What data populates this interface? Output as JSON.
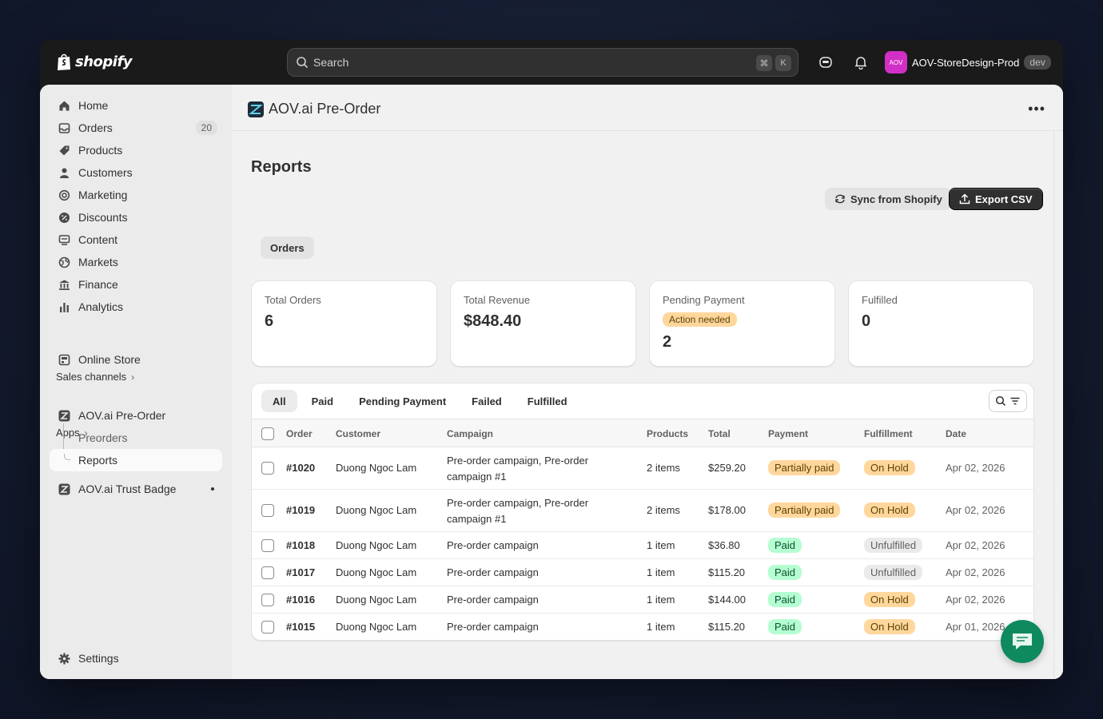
{
  "topbar": {
    "brand": "shopify",
    "search_placeholder": "Search",
    "kbd_cmd": "⌘",
    "kbd_k": "K",
    "store_avatar": "AOV",
    "store_name": "AOV-StoreDesign-Prod",
    "store_env": "dev"
  },
  "sidebar": {
    "items": [
      {
        "label": "Home",
        "icon": "home-icon"
      },
      {
        "label": "Orders",
        "icon": "inbox-icon",
        "badge": "20"
      },
      {
        "label": "Products",
        "icon": "tag-icon"
      },
      {
        "label": "Customers",
        "icon": "person-icon"
      },
      {
        "label": "Marketing",
        "icon": "target-icon"
      },
      {
        "label": "Discounts",
        "icon": "discount-icon"
      },
      {
        "label": "Content",
        "icon": "content-icon"
      },
      {
        "label": "Markets",
        "icon": "globe-icon"
      },
      {
        "label": "Finance",
        "icon": "bank-icon"
      },
      {
        "label": "Analytics",
        "icon": "chart-icon"
      }
    ],
    "sales_channels_label": "Sales channels",
    "online_store": "Online Store",
    "apps_label": "Apps",
    "app_preorder": "AOV.ai Pre-Order",
    "sub_preorders": "Preorders",
    "sub_reports": "Reports",
    "app_trust_badge": "AOV.ai Trust Badge",
    "settings": "Settings"
  },
  "app_header": {
    "title": "AOV.ai Pre-Order",
    "more": "•••"
  },
  "page": {
    "title": "Reports",
    "sync_button": "Sync from Shopify",
    "export_button": "Export CSV",
    "view_tab": "Orders"
  },
  "stats": [
    {
      "label": "Total Orders",
      "value": "6"
    },
    {
      "label": "Total Revenue",
      "value": "$848.40"
    },
    {
      "label": "Pending Payment",
      "tag": "Action needed",
      "value": "2"
    },
    {
      "label": "Fulfilled",
      "value": "0"
    }
  ],
  "table": {
    "tabs": [
      "All",
      "Paid",
      "Pending Payment",
      "Failed",
      "Fulfilled"
    ],
    "selected_tab": "All",
    "columns": [
      "Order",
      "Customer",
      "Campaign",
      "Products",
      "Total",
      "Payment",
      "Fulfillment",
      "Date"
    ],
    "rows": [
      {
        "order": "#1020",
        "customer": "Duong Ngoc Lam",
        "campaign": "Pre-order campaign, Pre-order campaign #1",
        "products": "2 items",
        "total": "$259.20",
        "payment": "Partially paid",
        "fulfillment": "On Hold",
        "date": "Apr 02, 2026"
      },
      {
        "order": "#1019",
        "customer": "Duong Ngoc Lam",
        "campaign": "Pre-order campaign, Pre-order campaign #1",
        "products": "2 items",
        "total": "$178.00",
        "payment": "Partially paid",
        "fulfillment": "On Hold",
        "date": "Apr 02, 2026"
      },
      {
        "order": "#1018",
        "customer": "Duong Ngoc Lam",
        "campaign": "Pre-order campaign",
        "products": "1 item",
        "total": "$36.80",
        "payment": "Paid",
        "fulfillment": "Unfulfilled",
        "date": "Apr 02, 2026"
      },
      {
        "order": "#1017",
        "customer": "Duong Ngoc Lam",
        "campaign": "Pre-order campaign",
        "products": "1 item",
        "total": "$115.20",
        "payment": "Paid",
        "fulfillment": "Unfulfilled",
        "date": "Apr 02, 2026"
      },
      {
        "order": "#1016",
        "customer": "Duong Ngoc Lam",
        "campaign": "Pre-order campaign",
        "products": "1 item",
        "total": "$144.00",
        "payment": "Paid",
        "fulfillment": "On Hold",
        "date": "Apr 02, 2026"
      },
      {
        "order": "#1015",
        "customer": "Duong Ngoc Lam",
        "campaign": "Pre-order campaign",
        "products": "1 item",
        "total": "$115.20",
        "payment": "Paid",
        "fulfillment": "On Hold",
        "date": "Apr 01, 2026"
      }
    ]
  },
  "colors": {
    "topbar": "#1a1a1a",
    "primary_button": "#303030",
    "warning_tag": "#ffd79d",
    "success_tag": "#b4fed2",
    "chat_fab": "#0f8a5f"
  }
}
